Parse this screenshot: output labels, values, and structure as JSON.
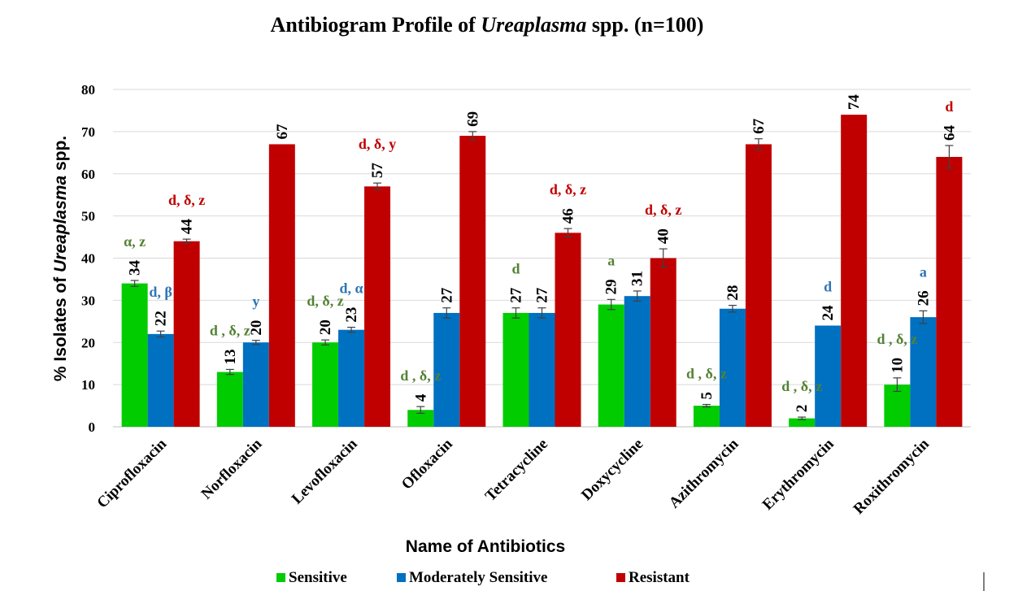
{
  "chart_data": {
    "type": "bar",
    "title_parts": [
      "Antibiogram Profile of ",
      "Ureaplasma",
      " spp. (n=100)"
    ],
    "ylabel_parts": [
      "% Isolates of ",
      "Ureaplasma",
      " spp."
    ],
    "xlabel": "Name of Antibiotics",
    "ylim": [
      0,
      80
    ],
    "yticks": [
      0,
      10,
      20,
      30,
      40,
      50,
      60,
      70,
      80
    ],
    "grid": true,
    "legend_position": "bottom",
    "categories": [
      "Ciprofloxacin",
      "Norfloxacin",
      "Levofloxacin",
      "Ofloxacin",
      "Tetracycline",
      "Doxycycline",
      "Azithromycin",
      "Erythromycin",
      "Roxithromycin"
    ],
    "series": [
      {
        "name": "Sensitive",
        "color": "#00cc00",
        "values": [
          34,
          13,
          20,
          4,
          27,
          29,
          5,
          2,
          10
        ],
        "errors": [
          0.7,
          0.6,
          0.6,
          0.8,
          1.2,
          1.2,
          0.3,
          0.3,
          1.6
        ],
        "annotations": [
          "α, z",
          "d , δ, z",
          "d, δ, z",
          "d , δ, z",
          "d",
          "a",
          "d , δ, z",
          "d , δ, z",
          "d , δ, z"
        ]
      },
      {
        "name": "Moderately Sensitive",
        "color": "#0070c0",
        "values": [
          22,
          20,
          23,
          27,
          27,
          31,
          28,
          24,
          26
        ],
        "errors": [
          0.7,
          0.5,
          0.6,
          1.2,
          1.2,
          1.2,
          0.8,
          0,
          1.5
        ],
        "annotations": [
          "d, β",
          "y",
          "d, α",
          "",
          "",
          "",
          "",
          "d",
          "a"
        ]
      },
      {
        "name": "Resistant",
        "color": "#c00000",
        "values": [
          44,
          67,
          57,
          69,
          46,
          40,
          67,
          74,
          64
        ],
        "errors": [
          0.5,
          0,
          0.8,
          1,
          1,
          2.2,
          1.3,
          0,
          2.7
        ],
        "annotations": [
          "d, δ, z",
          "",
          "d, δ, y",
          "",
          "d, δ, z",
          "d, δ, z",
          "",
          "",
          "d"
        ]
      }
    ]
  }
}
